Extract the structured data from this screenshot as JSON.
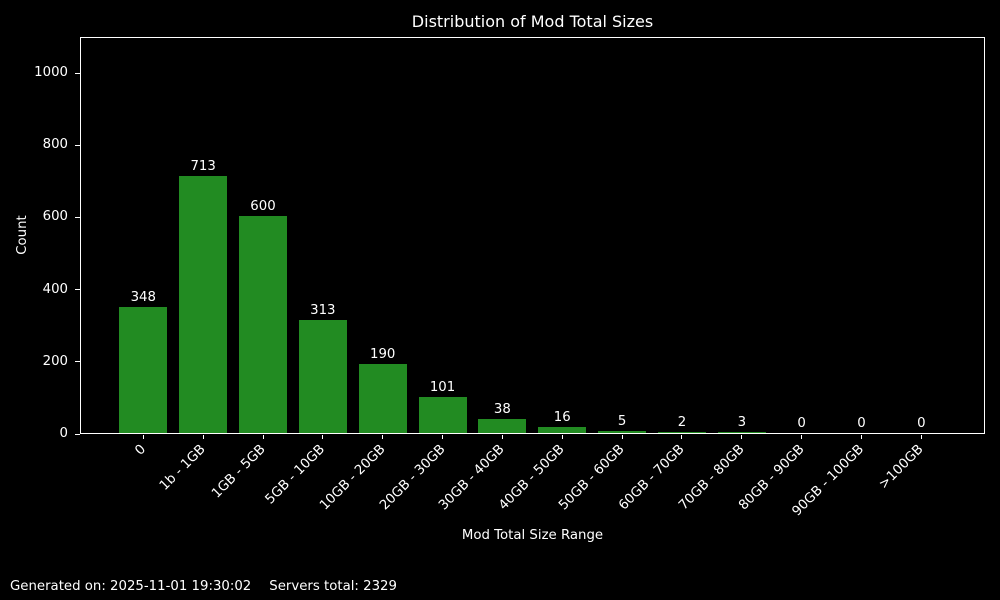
{
  "chart_data": {
    "type": "bar",
    "title": "Distribution of Mod Total Sizes",
    "xlabel": "Mod Total Size Range",
    "ylabel": "Count",
    "categories": [
      "0",
      "1b - 1GB",
      "1GB - 5GB",
      "5GB - 10GB",
      "10GB - 20GB",
      "20GB - 30GB",
      "30GB - 40GB",
      "40GB - 50GB",
      "50GB - 60GB",
      "60GB - 70GB",
      "70GB - 80GB",
      "80GB - 90GB",
      "90GB - 100GB",
      ">100GB"
    ],
    "values": [
      348,
      713,
      600,
      313,
      190,
      101,
      38,
      16,
      5,
      2,
      3,
      0,
      0,
      0
    ],
    "yticks": [
      0,
      200,
      400,
      600,
      800,
      1000
    ],
    "ylim": [
      0,
      1100
    ],
    "grid": false,
    "legend": null,
    "bar_color": "#228b22",
    "background_color": "#000000",
    "text_color": "#ffffff"
  },
  "footer": {
    "generated": "Generated on: 2025-11-01 19:30:02",
    "servers_total": "Servers total: 2329"
  }
}
